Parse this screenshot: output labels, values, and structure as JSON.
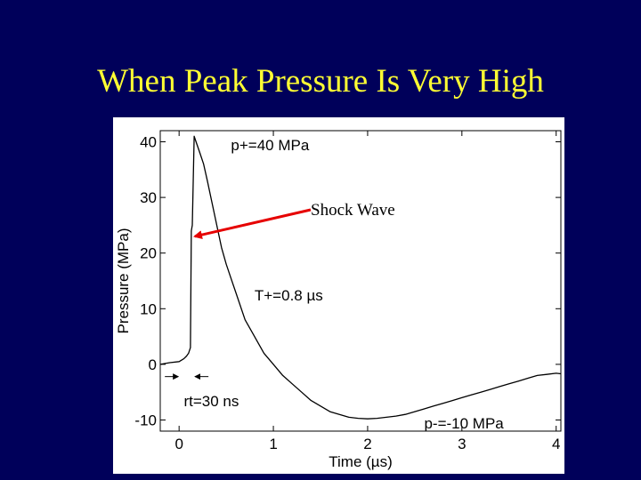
{
  "slide": {
    "title": "When Peak Pressure Is Very High",
    "title_color": "#ffff33",
    "background_color": "#00005a"
  },
  "chart_data": {
    "type": "line",
    "xlabel": "Time (µs)",
    "ylabel": "Pressure (MPa)",
    "xlim": [
      -0.2,
      4.05
    ],
    "ylim": [
      -12,
      42
    ],
    "xticks": [
      0,
      1,
      2,
      3,
      4
    ],
    "xtick_labels": [
      "0",
      "1",
      "2",
      "3",
      "4"
    ],
    "yticks": [
      -10,
      0,
      10,
      20,
      30,
      40
    ],
    "ytick_labels": [
      "-10",
      "0",
      "10",
      "20",
      "30",
      "40"
    ],
    "grid": false,
    "line_color": "#000000",
    "series": [
      {
        "x": [
          -0.2,
          -0.1,
          0.0,
          0.05,
          0.08,
          0.1,
          0.12,
          0.13,
          0.14,
          0.16,
          0.18,
          0.22,
          0.26,
          0.3,
          0.35,
          0.4,
          0.45,
          0.5,
          0.55,
          0.6,
          0.7,
          0.8,
          0.9,
          1.0,
          1.1,
          1.2,
          1.3,
          1.4,
          1.5,
          1.6,
          1.7,
          1.8,
          1.9,
          2.0,
          2.1,
          2.2,
          2.3,
          2.4,
          2.5,
          2.6,
          2.7,
          2.8,
          2.9,
          3.0,
          3.1,
          3.2,
          3.3,
          3.4,
          3.5,
          3.6,
          3.7,
          3.8,
          3.9,
          4.0,
          4.05
        ],
        "y": [
          0,
          0.3,
          0.5,
          1,
          1.5,
          2,
          3,
          24,
          25,
          41,
          40,
          38,
          36,
          33,
          29,
          25,
          21,
          18,
          15.5,
          13,
          8,
          5,
          2,
          0,
          -2,
          -3.5,
          -5,
          -6.5,
          -7.5,
          -8.5,
          -9,
          -9.5,
          -9.7,
          -9.8,
          -9.7,
          -9.5,
          -9.3,
          -9,
          -8.5,
          -8,
          -7.5,
          -7,
          -6.5,
          -6,
          -5.5,
          -5,
          -4.5,
          -4,
          -3.5,
          -3,
          -2.5,
          -2,
          -1.8,
          -1.6,
          -1.7
        ]
      }
    ],
    "annotations": [
      {
        "text": "p+=40 MPa",
        "x": 0.55,
        "y": 38.5
      },
      {
        "text": "T+=0.8 µs",
        "x": 0.8,
        "y": 11.5
      },
      {
        "text": "rt=30 ns",
        "x": 0.05,
        "y": -7.5
      },
      {
        "text": "p-=-10 MPa",
        "x": 2.6,
        "y": -11.5
      }
    ],
    "rise_time_marker": {
      "x_from": 0.0,
      "x_to": 0.16,
      "y": -2.2
    },
    "shock_arrow": {
      "label": "Shock Wave",
      "color": "#e60000",
      "target": {
        "x": 0.13,
        "y": 23
      }
    }
  }
}
